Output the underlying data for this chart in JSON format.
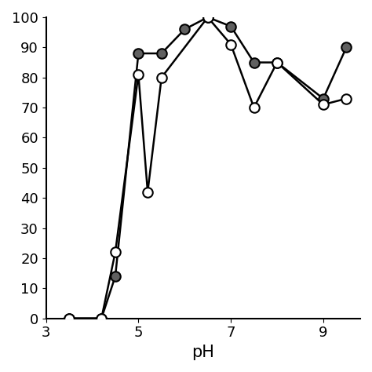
{
  "series1_x": [
    3.5,
    4.2,
    4.5,
    5.0,
    5.5,
    6.0,
    6.5,
    7.0,
    7.5,
    8.0,
    9.0,
    9.5
  ],
  "series1_y": [
    0,
    0,
    14,
    88,
    88,
    96,
    100,
    97,
    85,
    85,
    73,
    90
  ],
  "series2_x": [
    3.5,
    4.2,
    4.5,
    5.0,
    5.2,
    5.5,
    6.5,
    7.0,
    7.5,
    8.0,
    9.0,
    9.5
  ],
  "series2_y": [
    0,
    0,
    22,
    81,
    42,
    80,
    100,
    91,
    70,
    85,
    71,
    73
  ],
  "series1_color": "#606060",
  "series2_color": "#ffffff",
  "series1_marker_edge": "#000000",
  "series2_marker_edge": "#000000",
  "line_color": "#000000",
  "marker_size": 9,
  "line_width": 1.8,
  "xlabel": "pH",
  "xlim": [
    3.0,
    9.8
  ],
  "ylim": [
    0,
    100
  ],
  "xticks": [
    3.0,
    5.0,
    7.0,
    9.0
  ],
  "yticks": [
    0,
    10,
    20,
    30,
    40,
    50,
    60,
    70,
    80,
    90,
    100
  ],
  "xlabel_fontsize": 15,
  "tick_fontsize": 13,
  "background_color": "#ffffff"
}
